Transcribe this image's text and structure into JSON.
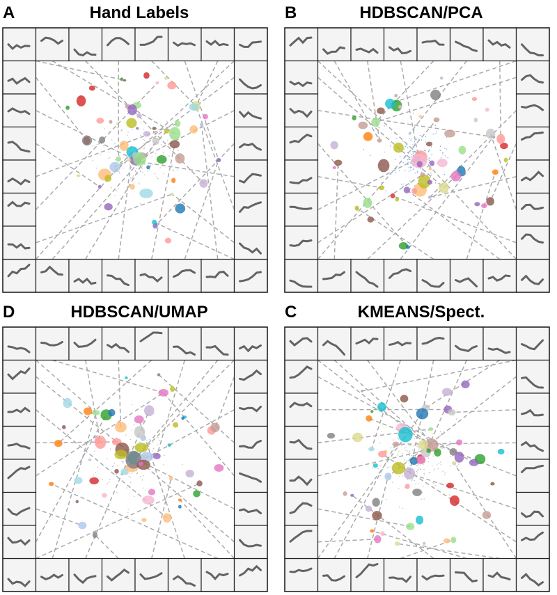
{
  "panels": [
    {
      "letter": "A",
      "title": "Hand Labels"
    },
    {
      "letter": "B",
      "title": "HDBSCAN/PCA"
    },
    {
      "letter": "D",
      "title": "HDBSCAN/UMAP"
    },
    {
      "letter": "C",
      "title": "KMEANS/Spect."
    }
  ]
}
